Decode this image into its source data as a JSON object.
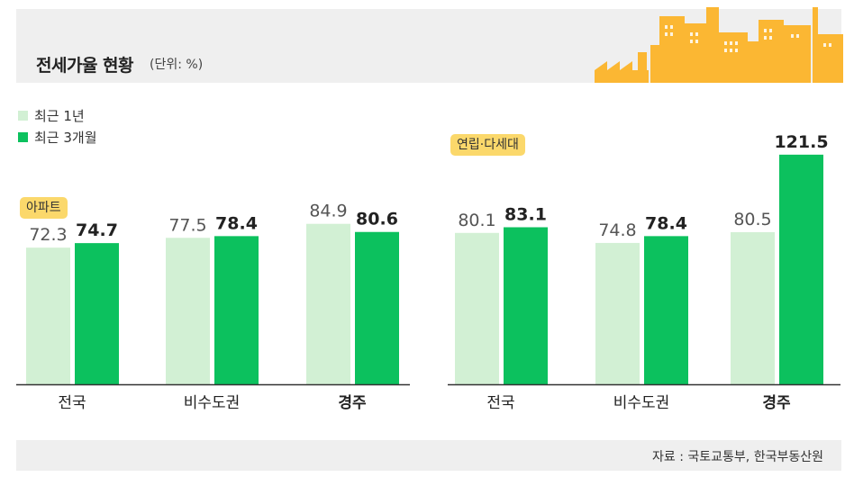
{
  "header": {
    "title": "전세가율 현황",
    "unit": "(단위: %)"
  },
  "legend": [
    {
      "label": "최근 1년",
      "color": "#d2f0d4"
    },
    {
      "label": "최근 3개월",
      "color": "#0cc15e"
    }
  ],
  "colors": {
    "light_bar": "#d2f0d4",
    "dark_bar": "#0cc15e",
    "badge": "#fbd86b",
    "skyline": "#fbb733"
  },
  "chart_data": [
    {
      "type": "bar",
      "title": "아파트",
      "categories": [
        "전국",
        "비수도권",
        "경주"
      ],
      "series": [
        {
          "name": "최근 1년",
          "values": [
            72.3,
            77.5,
            84.9
          ]
        },
        {
          "name": "최근 3개월",
          "values": [
            74.7,
            78.4,
            80.6
          ]
        }
      ],
      "highlight_category": "경주",
      "ylim": [
        0,
        130
      ]
    },
    {
      "type": "bar",
      "title": "연립·다세대",
      "categories": [
        "전국",
        "비수도권",
        "경주"
      ],
      "series": [
        {
          "name": "최근 1년",
          "values": [
            80.1,
            74.8,
            80.5
          ]
        },
        {
          "name": "최근 3개월",
          "values": [
            83.1,
            78.4,
            121.5
          ]
        }
      ],
      "highlight_category": "경주",
      "ylim": [
        0,
        130
      ]
    }
  ],
  "source": "자료 : 국토교통부, 한국부동산원"
}
